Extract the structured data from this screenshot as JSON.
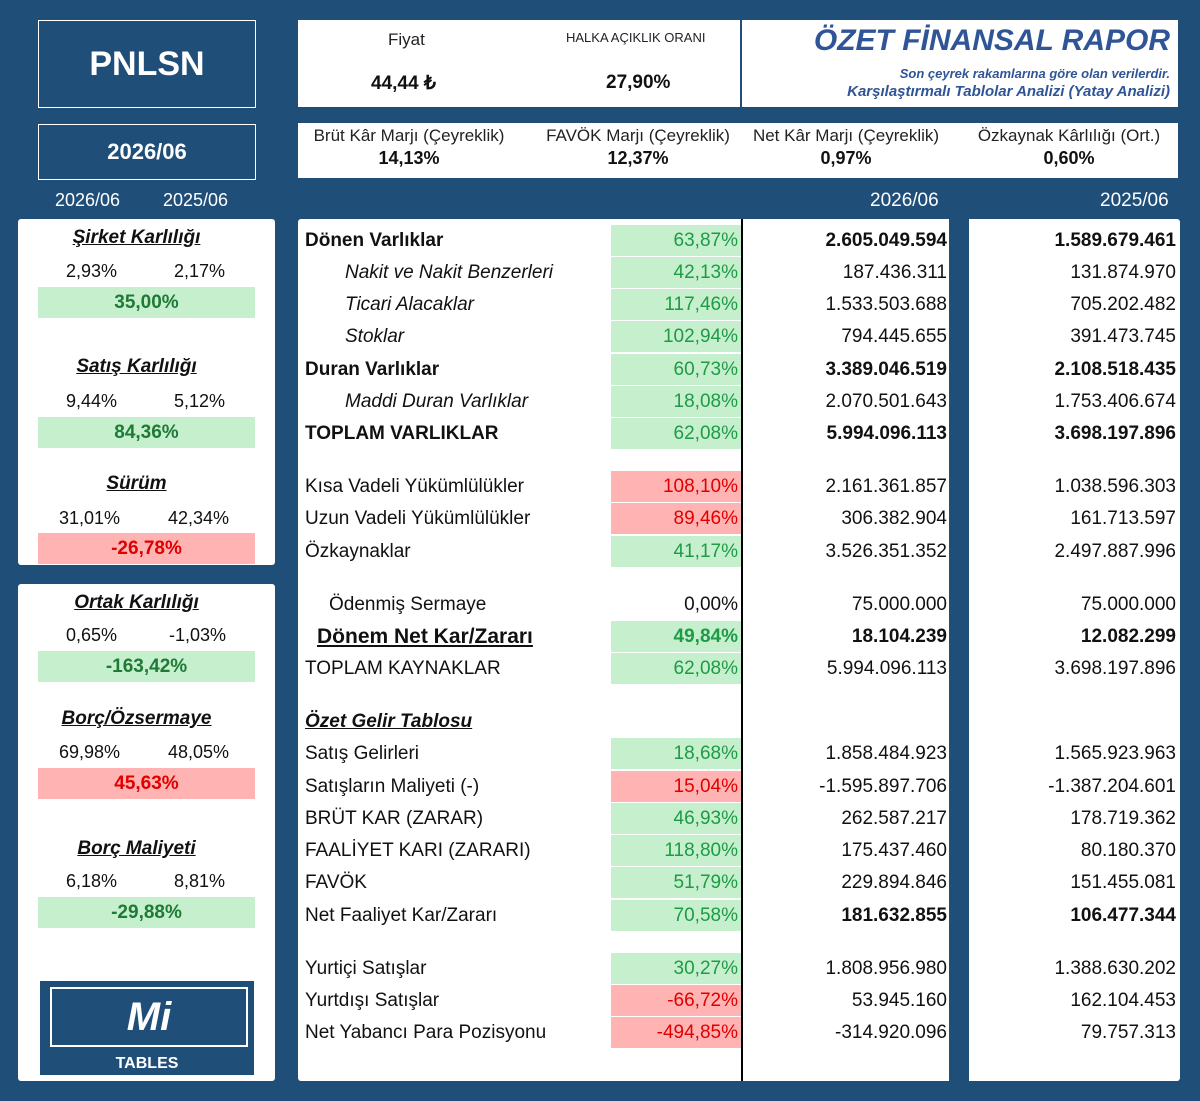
{
  "ticker": "PNLSN",
  "period": "2026/06",
  "years": {
    "current": "2026/06",
    "previous": "2025/06"
  },
  "price": {
    "label": "Fiyat",
    "value": "44,44 ₺"
  },
  "float": {
    "label": "HALKA AÇIKLIK ORANI",
    "value": "27,90%"
  },
  "report": {
    "title": "ÖZET FİNANSAL RAPOR",
    "subtitle1": "Son çeyrek rakamlarına göre olan verilerdir.",
    "subtitle2": "Karşılaştırmalı Tablolar Analizi (Yatay Analizi)"
  },
  "margins": [
    {
      "label": "Brüt Kâr Marjı (Çeyreklik)",
      "value": "14,13%"
    },
    {
      "label": "FAVÖK Marjı (Çeyreklik)",
      "value": "12,37%"
    },
    {
      "label": "Net Kâr Marjı (Çeyreklik)",
      "value": "0,97%"
    },
    {
      "label": "Özkaynak Kârlılığı (Ort.)",
      "value": "0,60%"
    }
  ],
  "ratios": [
    {
      "title": "Şirket Karlılığı",
      "current": "2,93%",
      "previous": "2,17%",
      "change": "35,00%",
      "trend": "positive"
    },
    {
      "title": "Satış Karlılığı",
      "current": "9,44%",
      "previous": "5,12%",
      "change": "84,36%",
      "trend": "positive"
    },
    {
      "title": "Sürüm",
      "current": "31,01%",
      "previous": "42,34%",
      "change": "-26,78%",
      "trend": "negative"
    },
    {
      "title": "Ortak Karlılığı",
      "current": "0,65%",
      "previous": "-1,03%",
      "change": "-163,42%",
      "trend": "positive"
    },
    {
      "title": "Borç/Özsermaye",
      "current": "69,98%",
      "previous": "48,05%",
      "change": "45,63%",
      "trend": "negative"
    },
    {
      "title": "Borç Maliyeti",
      "current": "6,18%",
      "previous": "8,81%",
      "change": "-29,88%",
      "trend": "positive"
    }
  ],
  "logo": {
    "mark": "Mi",
    "text": "TABLES"
  },
  "rows": [
    {
      "label": "Dönen Varlıklar",
      "change": "63,87%",
      "trend": "positive",
      "current": "2.605.049.594",
      "previous": "1.589.679.461",
      "style": "bold"
    },
    {
      "label": "Nakit ve Nakit Benzerleri",
      "change": "42,13%",
      "trend": "positive",
      "current": "187.436.311",
      "previous": "131.874.970",
      "style": "italic"
    },
    {
      "label": "Ticari Alacaklar",
      "change": "117,46%",
      "trend": "positive",
      "current": "1.533.503.688",
      "previous": "705.202.482",
      "style": "italic"
    },
    {
      "label": "Stoklar",
      "change": "102,94%",
      "trend": "positive",
      "current": "794.445.655",
      "previous": "391.473.745",
      "style": "italic"
    },
    {
      "label": "Duran Varlıklar",
      "change": "60,73%",
      "trend": "positive",
      "current": "3.389.046.519",
      "previous": "2.108.518.435",
      "style": "bold"
    },
    {
      "label": "Maddi Duran Varlıklar",
      "change": "18,08%",
      "trend": "positive",
      "current": "2.070.501.643",
      "previous": "1.753.406.674",
      "style": "italic"
    },
    {
      "label": "TOPLAM VARLIKLAR",
      "change": "62,08%",
      "trend": "positive",
      "current": "5.994.096.113",
      "previous": "3.698.197.896",
      "style": "bold"
    },
    {
      "label": "Kısa Vadeli Yükümlülükler",
      "change": "108,10%",
      "trend": "negative",
      "current": "2.161.361.857",
      "previous": "1.038.596.303",
      "style": "normal"
    },
    {
      "label": "Uzun Vadeli Yükümlülükler",
      "change": "89,46%",
      "trend": "negative",
      "current": "306.382.904",
      "previous": "161.713.597",
      "style": "normal"
    },
    {
      "label": "Özkaynaklar",
      "change": "41,17%",
      "trend": "positive",
      "current": "3.526.351.352",
      "previous": "2.497.887.996",
      "style": "normal"
    },
    {
      "label": "Ödenmiş Sermaye",
      "change": "0,00%",
      "trend": "neutral",
      "current": "75.000.000",
      "previous": "75.000.000",
      "style": "indent"
    },
    {
      "label": "Dönem Net Kar/Zararı",
      "change": "49,84%",
      "trend": "positive",
      "current": "18.104.239",
      "previous": "12.082.299",
      "style": "bold-underline"
    },
    {
      "label": "TOPLAM KAYNAKLAR",
      "change": "62,08%",
      "trend": "positive",
      "current": "5.994.096.113",
      "previous": "3.698.197.896",
      "style": "normal"
    },
    {
      "label": "Özet Gelir Tablosu",
      "change": "",
      "trend": "none",
      "current": "",
      "previous": "",
      "style": "section"
    },
    {
      "label": "Satış Gelirleri",
      "change": "18,68%",
      "trend": "positive",
      "current": "1.858.484.923",
      "previous": "1.565.923.963",
      "style": "normal"
    },
    {
      "label": "Satışların Maliyeti (-)",
      "change": "15,04%",
      "trend": "negative",
      "current": "-1.595.897.706",
      "previous": "-1.387.204.601",
      "style": "normal"
    },
    {
      "label": "BRÜT KAR (ZARAR)",
      "change": "46,93%",
      "trend": "positive",
      "current": "262.587.217",
      "previous": "178.719.362",
      "style": "normal"
    },
    {
      "label": "FAALİYET KARI (ZARARI)",
      "change": "118,80%",
      "trend": "positive",
      "current": "175.437.460",
      "previous": "80.180.370",
      "style": "normal"
    },
    {
      "label": "FAVÖK",
      "change": "51,79%",
      "trend": "positive",
      "current": "229.894.846",
      "previous": "151.455.081",
      "style": "normal"
    },
    {
      "label": "Net Faaliyet Kar/Zararı",
      "change": "70,58%",
      "trend": "positive",
      "current": "181.632.855",
      "previous": "106.477.344",
      "style": "normal-boldvals"
    },
    {
      "label": "Yurtiçi Satışlar",
      "change": "30,27%",
      "trend": "positive",
      "current": "1.808.956.980",
      "previous": "1.388.630.202",
      "style": "normal"
    },
    {
      "label": "Yurtdışı Satışlar",
      "change": "-66,72%",
      "trend": "negative",
      "current": "53.945.160",
      "previous": "162.104.453",
      "style": "normal"
    },
    {
      "label": "Net Yabancı Para Pozisyonu",
      "change": "-494,85%",
      "trend": "negative",
      "current": "-314.920.096",
      "previous": "79.757.313",
      "style": "normal"
    }
  ]
}
